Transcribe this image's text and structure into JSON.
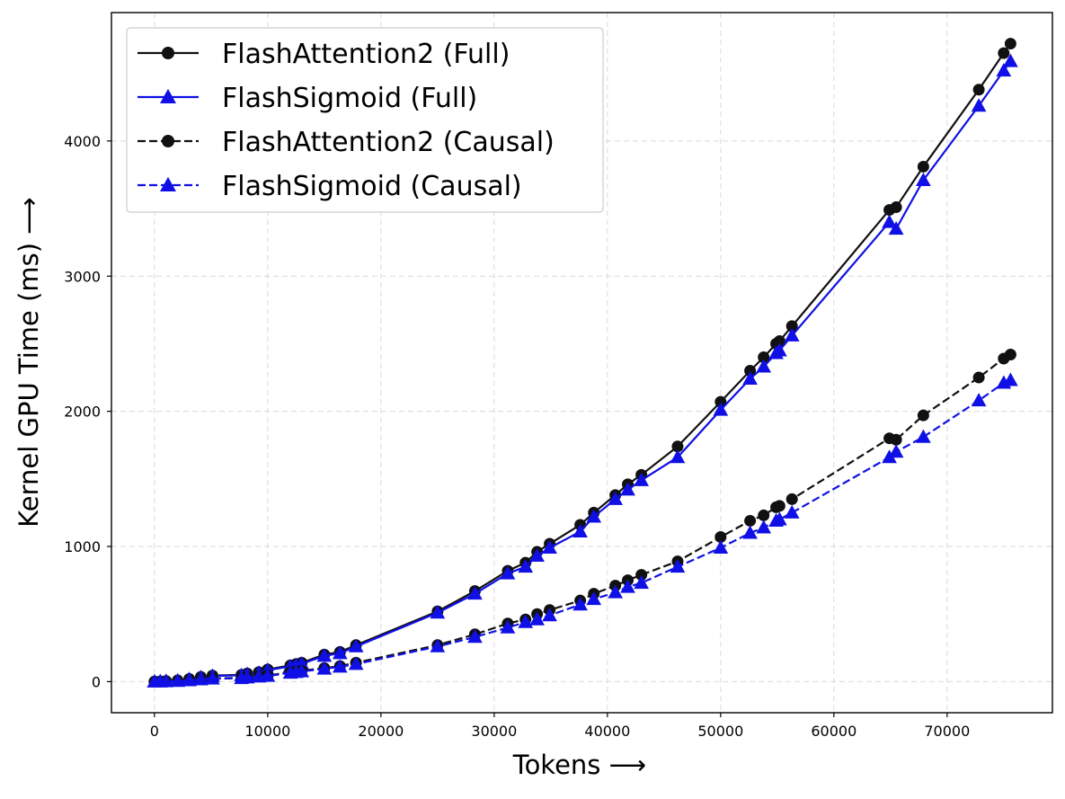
{
  "chart_data": {
    "type": "line",
    "title": "",
    "xlabel": "Tokens ⟶",
    "ylabel": "Kernel GPU Time (ms) ⟶",
    "xlim": [
      -3800,
      79300
    ],
    "ylim": [
      -230,
      4950
    ],
    "xticks": [
      0,
      10000,
      20000,
      30000,
      40000,
      50000,
      60000,
      70000
    ],
    "yticks": [
      0,
      1000,
      2000,
      3000,
      4000
    ],
    "grid": true,
    "legend_position": "top-left",
    "x": [
      0,
      512,
      1024,
      2048,
      3072,
      4096,
      5120,
      7680,
      8192,
      9216,
      10000,
      12000,
      12500,
      13000,
      15000,
      16384,
      17800,
      25000,
      28300,
      31200,
      32768,
      33792,
      34900,
      37600,
      38800,
      40700,
      41800,
      43000,
      46200,
      50000,
      52600,
      53800,
      54900,
      55200,
      56300,
      64900,
      65500,
      67900,
      72800,
      75000,
      75600
    ],
    "series": [
      {
        "name": "FlashAttention2 (Full)",
        "color": "#111111",
        "linestyle": "solid",
        "marker": "circle",
        "values": [
          0,
          1,
          4,
          9,
          20,
          35,
          45,
          50,
          60,
          70,
          90,
          120,
          130,
          140,
          200,
          220,
          270,
          520,
          670,
          820,
          880,
          960,
          1020,
          1160,
          1250,
          1380,
          1460,
          1530,
          1740,
          2070,
          2300,
          2400,
          2500,
          2520,
          2630,
          3490,
          3510,
          3810,
          4380,
          4650,
          4720
        ]
      },
      {
        "name": "FlashSigmoid (Full)",
        "color": "#1010e6",
        "linestyle": "solid",
        "marker": "triangle",
        "values": [
          0,
          1,
          4,
          8,
          18,
          32,
          42,
          47,
          55,
          65,
          85,
          113,
          122,
          132,
          190,
          210,
          260,
          510,
          650,
          800,
          850,
          930,
          990,
          1110,
          1220,
          1350,
          1420,
          1490,
          1660,
          2010,
          2240,
          2330,
          2430,
          2450,
          2560,
          3400,
          3350,
          3710,
          4260,
          4520,
          4590
        ]
      },
      {
        "name": "FlashAttention2 (Causal)",
        "color": "#111111",
        "linestyle": "dashed",
        "marker": "circle",
        "values": [
          0,
          1,
          2,
          5,
          10,
          18,
          24,
          28,
          33,
          40,
          45,
          70,
          75,
          80,
          100,
          115,
          140,
          270,
          350,
          430,
          460,
          500,
          530,
          600,
          650,
          710,
          750,
          790,
          890,
          1070,
          1190,
          1230,
          1290,
          1300,
          1350,
          1800,
          1790,
          1970,
          2250,
          2390,
          2420
        ]
      },
      {
        "name": "FlashSigmoid (Causal)",
        "color": "#1010e6",
        "linestyle": "dashed",
        "marker": "triangle",
        "values": [
          0,
          1,
          2,
          4,
          9,
          16,
          22,
          25,
          30,
          37,
          42,
          65,
          70,
          75,
          95,
          110,
          130,
          260,
          330,
          400,
          440,
          460,
          490,
          570,
          610,
          660,
          700,
          730,
          850,
          990,
          1100,
          1140,
          1190,
          1200,
          1250,
          1660,
          1700,
          1810,
          2080,
          2210,
          2230
        ]
      }
    ]
  }
}
